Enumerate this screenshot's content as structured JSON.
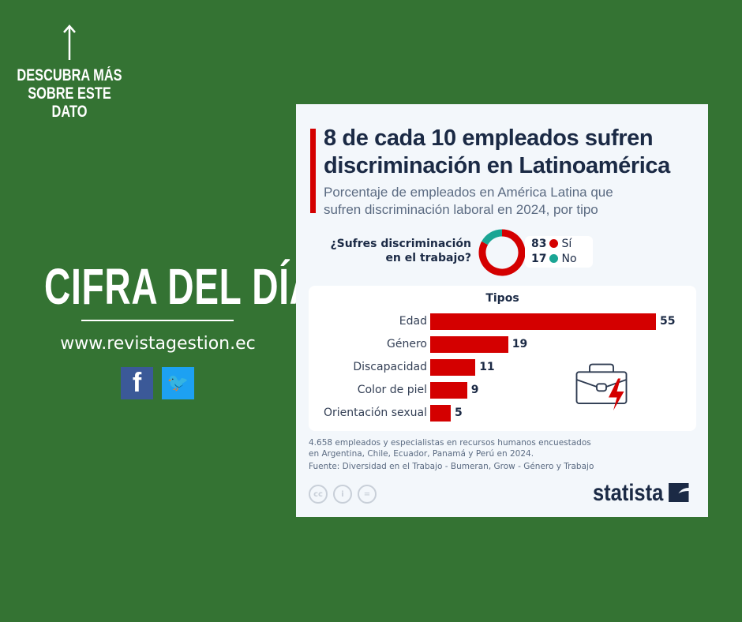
{
  "left": {
    "discover": [
      "DESCUBRA MÁS",
      "SOBRE ESTE",
      "DATO"
    ],
    "heading": "CIFRA DEL DÍA",
    "url": "www.revistagestion.ec",
    "facebook": "f",
    "twitter": "🐦"
  },
  "card": {
    "title": [
      "8 de cada 10 empleados sufren",
      "discriminación en Latinoamérica"
    ],
    "subtitle": [
      "Porcentaje de empleados en América Latina que",
      "sufren discriminación laboral en 2024, por tipo"
    ],
    "note": [
      "4.658 empleados y especialistas en recursos humanos encuestados",
      "en Argentina, Chile, Ecuador, Panamá y Perú en 2024."
    ],
    "source": "Fuente: Diversidad en el Trabajo - Bumeran, Grow - Género y Trabajo",
    "cc": [
      "cc",
      "i",
      "="
    ],
    "logo": "statista"
  },
  "chart_data": [
    {
      "type": "pie",
      "title": "¿Sufres discriminación en el trabajo?",
      "question": [
        "¿Sufres discriminación",
        "en el trabajo?"
      ],
      "slices": [
        {
          "label": "Sí",
          "value": 83,
          "color": "#d40000"
        },
        {
          "label": "No",
          "value": 17,
          "color": "#1aa594"
        }
      ]
    },
    {
      "type": "bar",
      "title": "Tipos",
      "categories": [
        "Edad",
        "Género",
        "Discapacidad",
        "Color de piel",
        "Orientación sexual"
      ],
      "values": [
        55,
        19,
        11,
        9,
        5
      ],
      "color": "#d40000",
      "xlim": [
        0,
        55
      ]
    }
  ]
}
